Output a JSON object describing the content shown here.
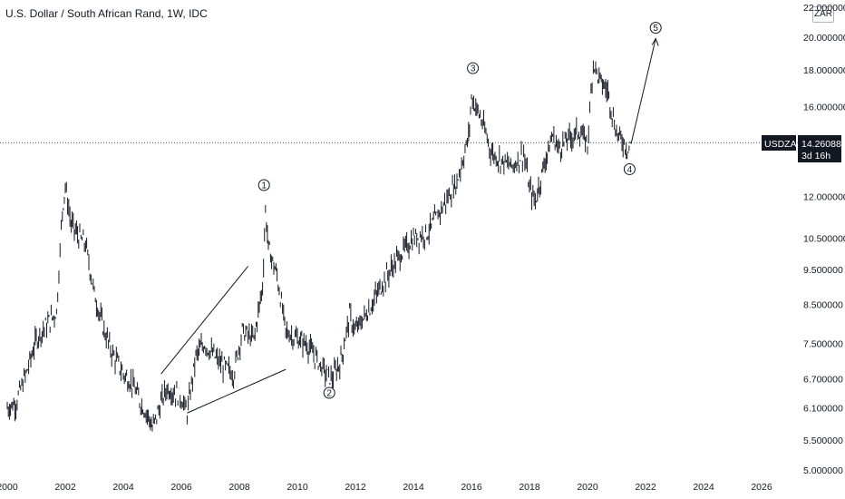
{
  "header": {
    "title": "U.S. Dollar / South African Rand, 1W, IDC"
  },
  "currency_button": "ZAR",
  "price_badge": {
    "symbol": "USDZAR",
    "price": "14.260880",
    "countdown": "3d 16h"
  },
  "colors": {
    "bar": "#131722",
    "line": "#131722",
    "badge_bg": "#131722",
    "grid_dot": "#131722"
  },
  "chart_data": {
    "type": "line",
    "title": "U.S. Dollar / South African Rand, 1W, IDC",
    "scale": "log",
    "x_ticks": [
      "2000",
      "2002",
      "2004",
      "2006",
      "2008",
      "2010",
      "2012",
      "2014",
      "2016",
      "2018",
      "2020",
      "2022",
      "2024",
      "2026"
    ],
    "y_ticks": [
      "22.000000",
      "20.000000",
      "18.000000",
      "16.000000",
      "12.000000",
      "10.500000",
      "9.500000",
      "8.500000",
      "7.500000",
      "6.700000",
      "6.100000",
      "5.500000",
      "5.000000"
    ],
    "ylim": [
      5.0,
      22.0
    ],
    "xlim": [
      2000,
      2027
    ],
    "current_price": 14.26088,
    "series": [
      {
        "values": [
          [
            2000.0,
            6.1
          ],
          [
            2000.3,
            6.2
          ],
          [
            2000.7,
            6.9
          ],
          [
            2001.0,
            7.6
          ],
          [
            2001.4,
            8.0
          ],
          [
            2001.7,
            8.3
          ],
          [
            2001.9,
            11.5
          ],
          [
            2002.0,
            12.4
          ],
          [
            2002.2,
            11.0
          ],
          [
            2002.5,
            10.5
          ],
          [
            2002.7,
            10.3
          ],
          [
            2003.0,
            8.8
          ],
          [
            2003.3,
            7.9
          ],
          [
            2003.6,
            7.3
          ],
          [
            2004.0,
            6.8
          ],
          [
            2004.3,
            6.6
          ],
          [
            2004.6,
            6.2
          ],
          [
            2004.9,
            5.9
          ],
          [
            2005.0,
            5.7
          ],
          [
            2005.3,
            6.2
          ],
          [
            2005.5,
            6.5
          ],
          [
            2005.8,
            6.4
          ],
          [
            2006.0,
            6.3
          ],
          [
            2006.2,
            6.0
          ],
          [
            2006.5,
            7.2
          ],
          [
            2006.8,
            7.5
          ],
          [
            2007.0,
            7.3
          ],
          [
            2007.4,
            7.0
          ],
          [
            2007.8,
            6.8
          ],
          [
            2008.1,
            7.8
          ],
          [
            2008.5,
            7.6
          ],
          [
            2008.8,
            9.0
          ],
          [
            2008.9,
            11.5
          ],
          [
            2009.0,
            10.2
          ],
          [
            2009.3,
            9.3
          ],
          [
            2009.6,
            7.8
          ],
          [
            2010.0,
            7.6
          ],
          [
            2010.3,
            7.5
          ],
          [
            2010.6,
            7.2
          ],
          [
            2011.0,
            6.8
          ],
          [
            2011.2,
            6.7
          ],
          [
            2011.5,
            7.1
          ],
          [
            2011.8,
            8.2
          ],
          [
            2012.0,
            7.8
          ],
          [
            2012.5,
            8.4
          ],
          [
            2013.0,
            9.2
          ],
          [
            2013.5,
            9.9
          ],
          [
            2014.0,
            10.5
          ],
          [
            2014.5,
            10.7
          ],
          [
            2015.0,
            11.6
          ],
          [
            2015.5,
            12.6
          ],
          [
            2015.9,
            14.5
          ],
          [
            2016.0,
            16.5
          ],
          [
            2016.3,
            15.5
          ],
          [
            2016.7,
            13.8
          ],
          [
            2017.0,
            13.5
          ],
          [
            2017.4,
            13.2
          ],
          [
            2017.8,
            13.8
          ],
          [
            2018.0,
            12.3
          ],
          [
            2018.2,
            11.8
          ],
          [
            2018.5,
            13.3
          ],
          [
            2018.8,
            14.6
          ],
          [
            2019.0,
            14.0
          ],
          [
            2019.3,
            14.4
          ],
          [
            2019.7,
            14.8
          ],
          [
            2020.0,
            14.2
          ],
          [
            2020.2,
            18.5
          ],
          [
            2020.4,
            17.5
          ],
          [
            2020.7,
            16.8
          ],
          [
            2021.0,
            14.7
          ],
          [
            2021.3,
            14.2
          ],
          [
            2021.4,
            13.9
          ],
          [
            2021.5,
            14.26
          ]
        ]
      }
    ],
    "annotations": [
      {
        "label": "1",
        "x": 2008.85,
        "y": 12.45
      },
      {
        "label": "2",
        "x": 2011.1,
        "y": 6.4
      },
      {
        "label": "3",
        "x": 2016.05,
        "y": 18.1
      },
      {
        "label": "4",
        "x": 2021.45,
        "y": 13.1
      },
      {
        "label": "5",
        "x": 2022.35,
        "y": 20.6
      }
    ],
    "trendlines": [
      {
        "from": [
          2005.3,
          6.8
        ],
        "to": [
          2008.3,
          9.6
        ]
      },
      {
        "from": [
          2006.2,
          6.0
        ],
        "to": [
          2009.6,
          6.9
        ]
      },
      {
        "from": [
          2021.5,
          14.2
        ],
        "to": [
          2022.35,
          19.9
        ]
      }
    ]
  }
}
